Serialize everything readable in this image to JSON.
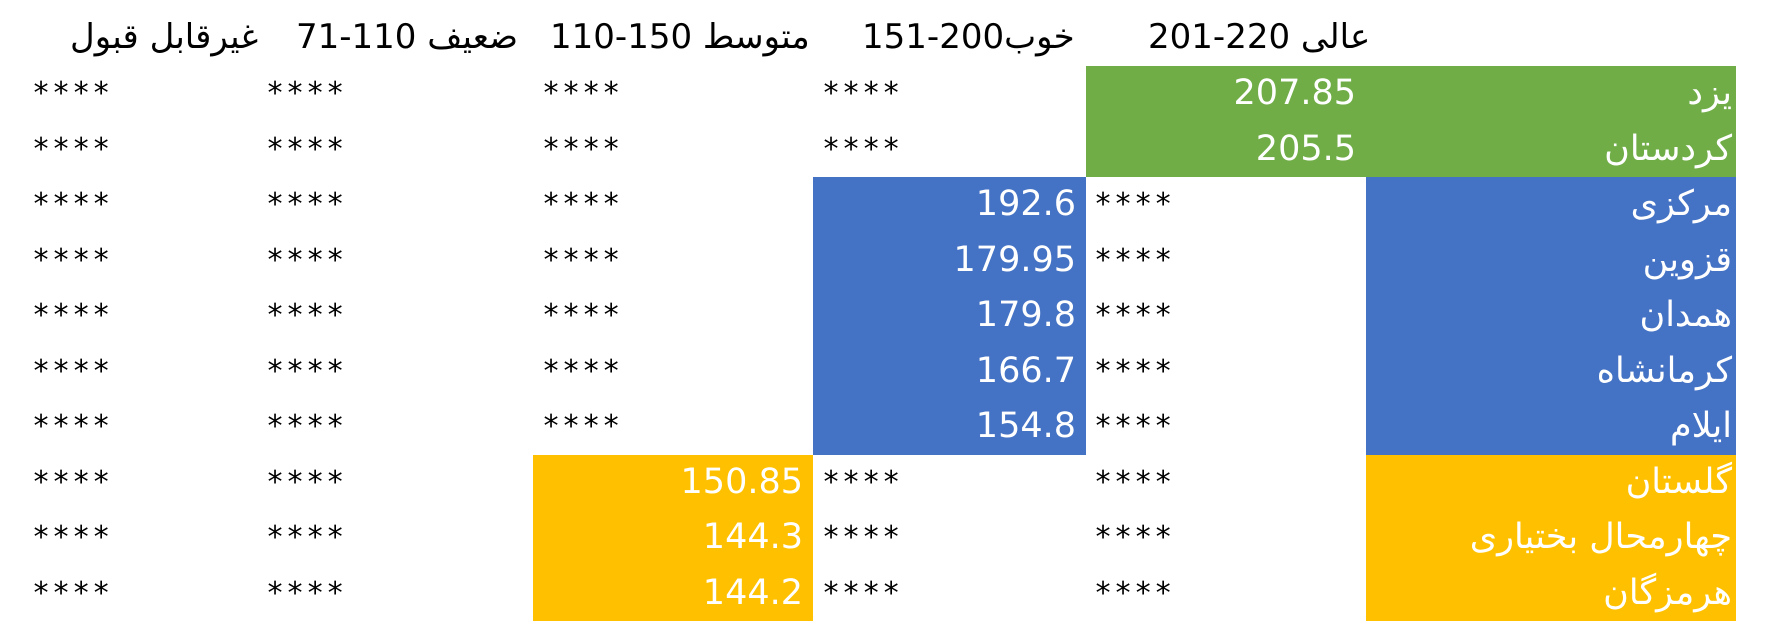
{
  "colors": {
    "excellent": "#70AD47",
    "good": "#4472C4",
    "medium": "#FFC000"
  },
  "headers": {
    "excellent": "عالی 220-201",
    "good": "خوب200-151",
    "medium": "متوسط 150-110",
    "weak": "ضعیف 110-71",
    "unacceptable": "غیرقابل قبول"
  },
  "placeholder": "****",
  "rows": [
    {
      "province": "یزد",
      "value": "207.85",
      "band": "excellent"
    },
    {
      "province": "کردستان",
      "value": "205.5",
      "band": "excellent"
    },
    {
      "province": "مرکزی",
      "value": "192.6",
      "band": "good"
    },
    {
      "province": "قزوین",
      "value": "179.95",
      "band": "good"
    },
    {
      "province": "همدان",
      "value": "179.8",
      "band": "good"
    },
    {
      "province": "کرمانشاه",
      "value": "166.7",
      "band": "good"
    },
    {
      "province": "ایلام",
      "value": "154.8",
      "band": "good"
    },
    {
      "province": "گلستان",
      "value": "150.85",
      "band": "medium"
    },
    {
      "province": "چهارمحال بختیاری",
      "value": "144.3",
      "band": "medium"
    },
    {
      "province": "هرمزگان",
      "value": "144.2",
      "band": "medium"
    }
  ]
}
